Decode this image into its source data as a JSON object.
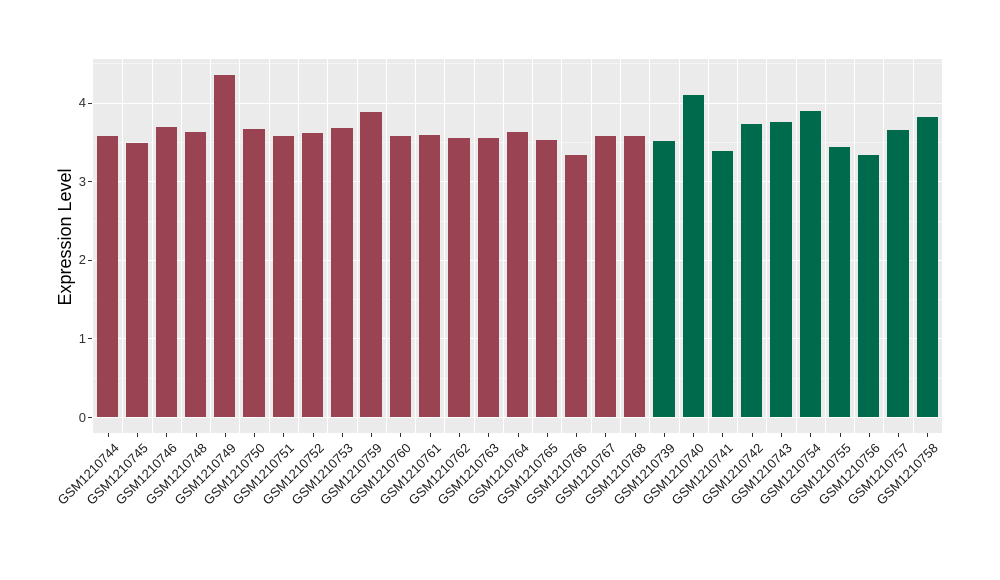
{
  "chart_data": {
    "type": "bar",
    "title": "",
    "xlabel": "",
    "ylabel": "Expression Level",
    "ylim": [
      0,
      4.56
    ],
    "yticks": [
      0,
      1,
      2,
      3,
      4
    ],
    "grid": "on",
    "legend": "none",
    "panel_bg": "#EBEBEB",
    "grid_major_color": "#FFFFFF",
    "grid_minor_color": "#F5F5F5",
    "axis_text_color": "#333333",
    "axis_title_color": "#000000",
    "tick_mark_color": "#333333",
    "group_colors": {
      "maroon": "#9A4453",
      "green": "#006A4D"
    },
    "bars": [
      {
        "label": "GSM1210744",
        "value": 3.58,
        "group": "maroon"
      },
      {
        "label": "GSM1210745",
        "value": 3.49,
        "group": "maroon"
      },
      {
        "label": "GSM1210746",
        "value": 3.69,
        "group": "maroon"
      },
      {
        "label": "GSM1210748",
        "value": 3.63,
        "group": "maroon"
      },
      {
        "label": "GSM1210749",
        "value": 4.35,
        "group": "maroon"
      },
      {
        "label": "GSM1210750",
        "value": 3.66,
        "group": "maroon"
      },
      {
        "label": "GSM1210751",
        "value": 3.58,
        "group": "maroon"
      },
      {
        "label": "GSM1210752",
        "value": 3.61,
        "group": "maroon"
      },
      {
        "label": "GSM1210753",
        "value": 3.68,
        "group": "maroon"
      },
      {
        "label": "GSM1210759",
        "value": 3.88,
        "group": "maroon"
      },
      {
        "label": "GSM1210760",
        "value": 3.57,
        "group": "maroon"
      },
      {
        "label": "GSM1210761",
        "value": 3.59,
        "group": "maroon"
      },
      {
        "label": "GSM1210762",
        "value": 3.55,
        "group": "maroon"
      },
      {
        "label": "GSM1210763",
        "value": 3.55,
        "group": "maroon"
      },
      {
        "label": "GSM1210764",
        "value": 3.63,
        "group": "maroon"
      },
      {
        "label": "GSM1210765",
        "value": 3.52,
        "group": "maroon"
      },
      {
        "label": "GSM1210766",
        "value": 3.33,
        "group": "maroon"
      },
      {
        "label": "GSM1210767",
        "value": 3.58,
        "group": "maroon"
      },
      {
        "label": "GSM1210768",
        "value": 3.57,
        "group": "maroon"
      },
      {
        "label": "GSM1210739",
        "value": 3.51,
        "group": "green"
      },
      {
        "label": "GSM1210740",
        "value": 4.1,
        "group": "green"
      },
      {
        "label": "GSM1210741",
        "value": 3.38,
        "group": "green"
      },
      {
        "label": "GSM1210742",
        "value": 3.73,
        "group": "green"
      },
      {
        "label": "GSM1210743",
        "value": 3.75,
        "group": "green"
      },
      {
        "label": "GSM1210754",
        "value": 3.9,
        "group": "green"
      },
      {
        "label": "GSM1210755",
        "value": 3.43,
        "group": "green"
      },
      {
        "label": "GSM1210756",
        "value": 3.34,
        "group": "green"
      },
      {
        "label": "GSM1210757",
        "value": 3.65,
        "group": "green"
      },
      {
        "label": "GSM1210758",
        "value": 3.82,
        "group": "green"
      }
    ]
  }
}
